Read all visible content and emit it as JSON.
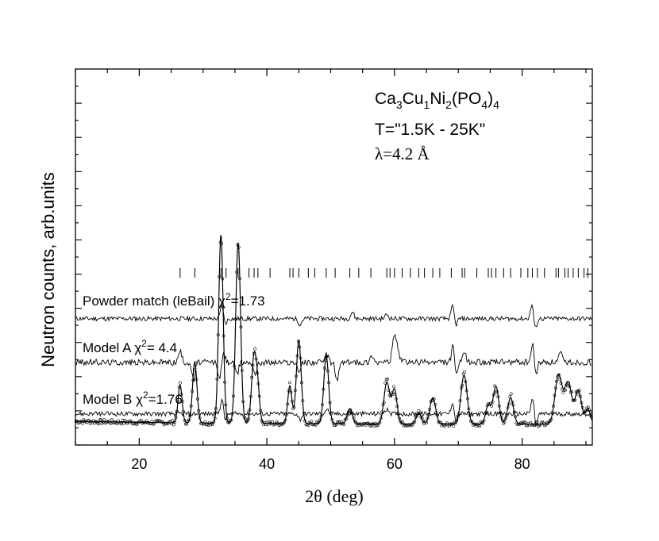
{
  "chart_data": {
    "type": "scatter",
    "xlabel_main": "2θ",
    "xlabel_unit": "(deg)",
    "ylabel": "Neutron counts, arb.units",
    "xlim": [
      10,
      91
    ],
    "xticks": [
      20,
      40,
      60,
      80
    ],
    "xtick_labels": [
      "20",
      "40",
      "60",
      "80"
    ],
    "yticks_shown": false,
    "annotation": {
      "formula": [
        {
          "t": "Ca"
        },
        {
          "t": "3",
          "sub": true
        },
        {
          "t": "Cu"
        },
        {
          "t": "1",
          "sub": true
        },
        {
          "t": "Ni"
        },
        {
          "t": "2",
          "sub": true
        },
        {
          "t": "(PO"
        },
        {
          "t": "4",
          "sub": true
        },
        {
          "t": ")"
        },
        {
          "t": "4",
          "sub": true
        }
      ],
      "temperature": "T=\"1.5K - 25K\"",
      "wavelength": "λ=4.2 Å"
    },
    "background_level": 0.055,
    "peaks": [
      {
        "x": 26.4,
        "h": 0.1,
        "w": 0.32
      },
      {
        "x": 28.7,
        "h": 0.16,
        "w": 0.35
      },
      {
        "x": 32.8,
        "h": 0.5,
        "w": 0.35
      },
      {
        "x": 35.5,
        "h": 0.48,
        "w": 0.38
      },
      {
        "x": 38.0,
        "h": 0.18,
        "w": 0.38
      },
      {
        "x": 38.6,
        "h": 0.07,
        "w": 0.3
      },
      {
        "x": 43.6,
        "h": 0.1,
        "w": 0.33
      },
      {
        "x": 45.0,
        "h": 0.22,
        "w": 0.38
      },
      {
        "x": 49.3,
        "h": 0.18,
        "w": 0.38
      },
      {
        "x": 53.0,
        "h": 0.04,
        "w": 0.4
      },
      {
        "x": 58.8,
        "h": 0.11,
        "w": 0.45
      },
      {
        "x": 60.0,
        "h": 0.09,
        "w": 0.4
      },
      {
        "x": 63.8,
        "h": 0.03,
        "w": 0.4
      },
      {
        "x": 66.0,
        "h": 0.07,
        "w": 0.45
      },
      {
        "x": 70.9,
        "h": 0.13,
        "w": 0.48
      },
      {
        "x": 74.7,
        "h": 0.05,
        "w": 0.4
      },
      {
        "x": 75.9,
        "h": 0.1,
        "w": 0.45
      },
      {
        "x": 78.2,
        "h": 0.07,
        "w": 0.45
      },
      {
        "x": 85.7,
        "h": 0.13,
        "w": 0.55
      },
      {
        "x": 87.2,
        "h": 0.11,
        "w": 0.55
      },
      {
        "x": 88.8,
        "h": 0.09,
        "w": 0.5
      },
      {
        "x": 90.3,
        "h": 0.04,
        "w": 0.4
      }
    ],
    "bragg_ticks": [
      26.4,
      28.7,
      32.8,
      33.6,
      35.5,
      37.2,
      38.0,
      38.6,
      40.5,
      43.6,
      44.1,
      45.0,
      46.5,
      47.5,
      49.3,
      50.7,
      53.0,
      54.4,
      56.3,
      58.8,
      59.3,
      60.0,
      61.2,
      62.5,
      63.8,
      64.7,
      66.0,
      67.1,
      68.9,
      70.6,
      71.0,
      72.9,
      74.7,
      75.2,
      75.9,
      77.1,
      78.2,
      79.8,
      80.9,
      81.6,
      82.4,
      83.5,
      85.3,
      85.7,
      86.7,
      87.2,
      88.0,
      88.8,
      89.7,
      90.3
    ],
    "difference_curves": [
      {
        "label": "Powder match (leBail) χ",
        "superscript": "2",
        "value": "=1.73",
        "baseline": 0.336,
        "noise": 0.006,
        "features": [
          [
            33.0,
            0.04
          ],
          [
            33.4,
            -0.02
          ],
          [
            45.2,
            -0.015
          ],
          [
            53.4,
            0.018
          ],
          [
            58.8,
            0.012
          ],
          [
            69.2,
            0.045
          ],
          [
            69.5,
            -0.03
          ],
          [
            81.6,
            0.045
          ],
          [
            82.0,
            -0.035
          ]
        ]
      },
      {
        "label": "Model A χ",
        "superscript": "2",
        "value": "= 4.4",
        "baseline": 0.22,
        "noise": 0.008,
        "features": [
          [
            26.4,
            0.03
          ],
          [
            28.5,
            -0.05
          ],
          [
            32.6,
            -0.045
          ],
          [
            33.2,
            0.025
          ],
          [
            35.3,
            -0.035
          ],
          [
            38.2,
            -0.03
          ],
          [
            45.0,
            -0.025
          ],
          [
            49.4,
            0.02
          ],
          [
            51.0,
            -0.05
          ],
          [
            56.5,
            0.02
          ],
          [
            59.9,
            0.075
          ],
          [
            60.5,
            0.04
          ],
          [
            69.2,
            0.05
          ],
          [
            69.6,
            -0.04
          ],
          [
            71.0,
            0.025
          ],
          [
            81.7,
            0.055
          ],
          [
            82.1,
            -0.04
          ],
          [
            86.0,
            0.025
          ]
        ]
      },
      {
        "label": "Model B χ",
        "superscript": "2",
        "value": "=1.76",
        "baseline": 0.083,
        "noise": 0.006,
        "features": [
          [
            33.0,
            0.045
          ],
          [
            33.4,
            -0.025
          ],
          [
            45.2,
            -0.015
          ],
          [
            49.4,
            0.012
          ],
          [
            58.9,
            0.015
          ],
          [
            69.2,
            0.045
          ],
          [
            69.5,
            -0.035
          ],
          [
            81.7,
            0.05
          ],
          [
            82.1,
            -0.04
          ]
        ]
      }
    ]
  }
}
